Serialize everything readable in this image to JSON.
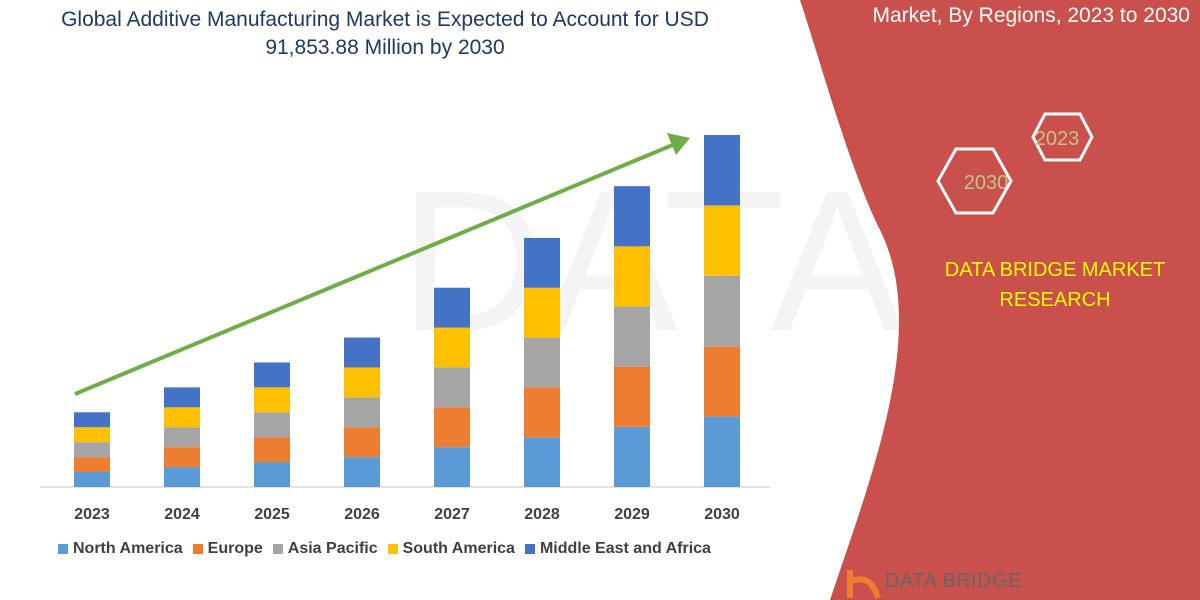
{
  "title": "Global Additive Manufacturing Market is Expected to Account for USD 91,853.88 Million by 2030",
  "side_title": "Market, By Regions, 2023 to 2030",
  "hexagons": [
    "2023",
    "2030"
  ],
  "brand": "DATA BRIDGE MARKET RESEARCH",
  "logo": "DATA BRIDGE",
  "watermark": "DATA BRIDGE",
  "colors": {
    "panel": "#c9504b",
    "arrow": "#70ad47",
    "title": "#1f3864",
    "brand_text": "#ffff00",
    "hex_text": "#c3c38a"
  },
  "chart_data": {
    "type": "bar",
    "stacked": true,
    "title": "Global Additive Manufacturing Market is Expected to Account for USD 91,853.88 Million by 2030",
    "categories": [
      "2023",
      "2024",
      "2025",
      "2026",
      "2027",
      "2028",
      "2029",
      "2030"
    ],
    "series": [
      {
        "name": "North America",
        "color": "#5b9bd5",
        "values": [
          3900,
          5200,
          6500,
          7800,
          10400,
          13000,
          15700,
          18370
        ]
      },
      {
        "name": "Europe",
        "color": "#ed7d31",
        "values": [
          3900,
          5200,
          6500,
          7800,
          10400,
          13000,
          15700,
          18370
        ]
      },
      {
        "name": "Asia Pacific",
        "color": "#a5a5a5",
        "values": [
          3900,
          5200,
          6500,
          7800,
          10400,
          13000,
          15700,
          18370
        ]
      },
      {
        "name": "South America",
        "color": "#ffc000",
        "values": [
          3900,
          5200,
          6500,
          7800,
          10400,
          13000,
          15700,
          18370
        ]
      },
      {
        "name": "Middle East and Africa",
        "color": "#4472c4",
        "values": [
          3900,
          5200,
          6500,
          7800,
          10400,
          13000,
          15700,
          18370
        ]
      }
    ],
    "ylim": [
      0,
      91853.88
    ],
    "grid": false,
    "legend": "bottom",
    "trend_arrow": true
  }
}
